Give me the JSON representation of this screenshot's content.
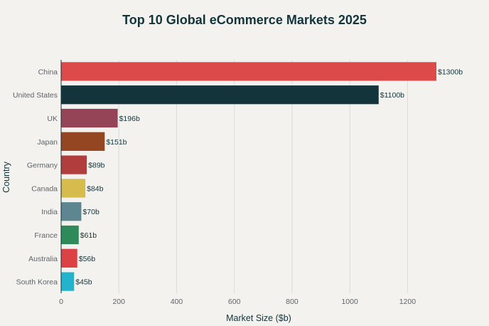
{
  "chart_data": {
    "type": "bar",
    "orientation": "horizontal",
    "title": "Top 10 Global eCommerce Markets 2025",
    "xlabel": "Market Size ($b)",
    "ylabel": "Country",
    "categories": [
      "China",
      "United States",
      "UK",
      "Japan",
      "Germany",
      "Canada",
      "India",
      "France",
      "Australia",
      "South Korea"
    ],
    "values": [
      1300,
      1100,
      196,
      151,
      89,
      84,
      70,
      61,
      56,
      45
    ],
    "value_labels": [
      "$1300b",
      "$1100b",
      "$196b",
      "$151b",
      "$89b",
      "$84b",
      "$70b",
      "$61b",
      "$56b",
      "$45b"
    ],
    "colors": [
      "#dd4a4a",
      "#13343b",
      "#954356",
      "#944522",
      "#b13d3d",
      "#d6bb4d",
      "#5e8690",
      "#2e8a58",
      "#dc4146",
      "#24b3cd"
    ],
    "xlim": [
      0,
      1300
    ],
    "xticks": [
      0,
      200,
      400,
      600,
      800,
      1000,
      1200
    ],
    "grid": true,
    "legend": "none"
  }
}
